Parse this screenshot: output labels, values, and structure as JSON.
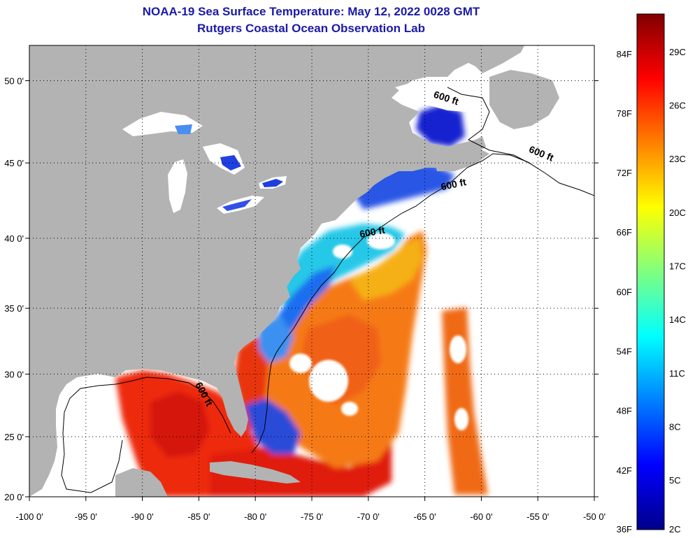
{
  "title": "NOAA-19 Sea Surface Temperature:  May 12, 2022 0028 GMT",
  "subtitle": "Rutgers Coastal Ocean Observation Lab",
  "map": {
    "lon_range": [
      -100,
      -50
    ],
    "lat_range": [
      20,
      52
    ],
    "lon_ticks": [
      {
        "value": -100,
        "label": "-100 0'"
      },
      {
        "value": -95,
        "label": "-95 0'"
      },
      {
        "value": -90,
        "label": "-90 0'"
      },
      {
        "value": -85,
        "label": "-85 0'"
      },
      {
        "value": -80,
        "label": "-80 0'"
      },
      {
        "value": -75,
        "label": "-75 0'"
      },
      {
        "value": -70,
        "label": "-70 0'"
      },
      {
        "value": -65,
        "label": "-65 0'"
      },
      {
        "value": -60,
        "label": "-60 0'"
      },
      {
        "value": -55,
        "label": "-55 0'"
      },
      {
        "value": -50,
        "label": "-50 0'"
      }
    ],
    "lat_ticks": [
      {
        "value": 20,
        "label": "20 0'"
      },
      {
        "value": 25,
        "label": "25 0'"
      },
      {
        "value": 30,
        "label": "30 0'"
      },
      {
        "value": 35,
        "label": "35 0'"
      },
      {
        "value": 40,
        "label": "40 0'"
      },
      {
        "value": 45,
        "label": "45 0'"
      },
      {
        "value": 50,
        "label": "50 0'"
      }
    ],
    "grid": "dotted",
    "contour_labels": [
      {
        "text": "600 ft",
        "lon": -63.2,
        "lat": 48.8,
        "angle": 18
      },
      {
        "text": "600 ft",
        "lon": -54.8,
        "lat": 45.4,
        "angle": 22
      },
      {
        "text": "600 ft",
        "lon": -62.4,
        "lat": 43.4,
        "angle": -12
      },
      {
        "text": "600 ft",
        "lon": -69.6,
        "lat": 40.2,
        "angle": -10
      },
      {
        "text": "600 ft",
        "lon": -84.8,
        "lat": 28.3,
        "angle": 62
      }
    ],
    "colors": {
      "land": "#b3b3b3",
      "no_data": "#ffffff",
      "grid": "#000000"
    }
  },
  "colorbar": {
    "f_labels": [
      {
        "value": 36,
        "label": "36F"
      },
      {
        "value": 42,
        "label": "42F"
      },
      {
        "value": 48,
        "label": "48F"
      },
      {
        "value": 54,
        "label": "54F"
      },
      {
        "value": 60,
        "label": "60F"
      },
      {
        "value": 66,
        "label": "66F"
      },
      {
        "value": 72,
        "label": "72F"
      },
      {
        "value": 78,
        "label": "78F"
      },
      {
        "value": 84,
        "label": "84F"
      }
    ],
    "c_labels": [
      {
        "value": 2,
        "label": "2C"
      },
      {
        "value": 5,
        "label": "5C"
      },
      {
        "value": 8,
        "label": "8C"
      },
      {
        "value": 11,
        "label": "11C"
      },
      {
        "value": 14,
        "label": "14C"
      },
      {
        "value": 17,
        "label": "17C"
      },
      {
        "value": 20,
        "label": "20C"
      },
      {
        "value": 23,
        "label": "23C"
      },
      {
        "value": 26,
        "label": "26C"
      },
      {
        "value": 29,
        "label": "29C"
      }
    ],
    "range_f": [
      36,
      88
    ],
    "palette": [
      "#00008b",
      "#0000ff",
      "#0080ff",
      "#00ffff",
      "#80ff80",
      "#ffff00",
      "#ff8000",
      "#ff0000",
      "#800000"
    ]
  }
}
